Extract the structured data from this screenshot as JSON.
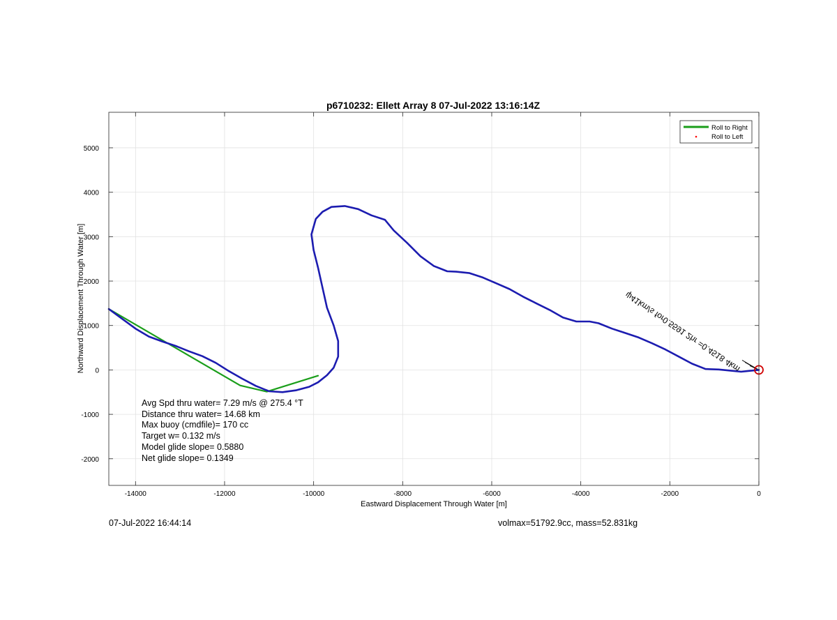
{
  "footer": {
    "timestamp": "07-Jul-2022 16:44:14",
    "vol_mass": "volmax=51792.9cc, mass=52.831kg"
  },
  "chart_data": {
    "type": "line",
    "title": "p6710232: Ellett Array 8 07-Jul-2022 13:16:14Z",
    "xlabel": "Eastward Displacement Through Water [m]",
    "ylabel": "Northward Displacement Through Water [m]",
    "xlim": [
      -14600,
      0
    ],
    "ylim": [
      -2600,
      5800
    ],
    "xticks": [
      -14000,
      -12000,
      -10000,
      -8000,
      -6000,
      -4000,
      -2000,
      0
    ],
    "yticks": [
      -2000,
      -1000,
      0,
      1000,
      2000,
      3000,
      4000,
      5000
    ],
    "grid": true,
    "legend": {
      "placement": "top-right",
      "entries": [
        {
          "label": "Roll to Right",
          "color": "#1a9e1a",
          "style": "line"
        },
        {
          "label": "Roll to Left",
          "color": "#ff0000",
          "style": "dot"
        }
      ]
    },
    "series": [
      {
        "color": "#1c1cb0",
        "x": [
          0,
          -200,
          -400,
          -600,
          -900,
          -1200,
          -1500,
          -1800,
          -2100,
          -2400,
          -2700,
          -3000,
          -3300,
          -3600,
          -3800,
          -4100,
          -4400,
          -4700,
          -5000,
          -5300,
          -5600,
          -5900,
          -6200,
          -6500,
          -6800,
          -7000,
          -7300,
          -7600,
          -7900,
          -8200,
          -8400,
          -8700,
          -9000,
          -9300,
          -9600,
          -9800,
          -9950,
          -10050,
          -10000,
          -9900,
          -9800,
          -9700,
          -9550,
          -9450,
          -9450,
          -9550,
          -9700,
          -9900,
          -10100,
          -10400,
          -10700,
          -11000,
          -11300,
          -11600,
          -11900,
          -12200,
          -12500,
          -12800,
          -13100,
          -13400,
          -13700,
          -14000,
          -14300,
          -14600
        ],
        "y": [
          0,
          -20,
          -40,
          -20,
          10,
          20,
          140,
          300,
          460,
          600,
          730,
          830,
          930,
          1050,
          1090,
          1090,
          1180,
          1350,
          1500,
          1650,
          1820,
          1950,
          2080,
          2180,
          2210,
          2220,
          2340,
          2560,
          2860,
          3140,
          3380,
          3480,
          3620,
          3690,
          3670,
          3560,
          3400,
          3050,
          2700,
          2300,
          1850,
          1400,
          1000,
          650,
          300,
          50,
          -120,
          -280,
          -380,
          -460,
          -500,
          -480,
          -360,
          -200,
          -30,
          160,
          310,
          420,
          540,
          640,
          750,
          930,
          1150,
          1370
        ]
      },
      {
        "name": "Roll to Right",
        "color": "#1a9e1a",
        "x": [
          -14600,
          -11650,
          -11050,
          -9900
        ],
        "y": [
          1370,
          -350,
          -490,
          -130
        ]
      }
    ],
    "endpoint_marker": {
      "x": 0,
      "y": 0,
      "color": "#d00000"
    },
    "annotation_text": "ψ41km/s for0.5591 2hr =0.4518 4km",
    "stats_box": [
      "Avg Spd thru water=  7.29 m/s @ 275.4 °T",
      "Distance thru water= 14.68 km",
      "Max buoy (cmdfile)= 170 cc",
      "Target w= 0.132 m/s",
      "Model glide slope= 0.5880",
      "Net glide slope= 0.1349"
    ]
  }
}
